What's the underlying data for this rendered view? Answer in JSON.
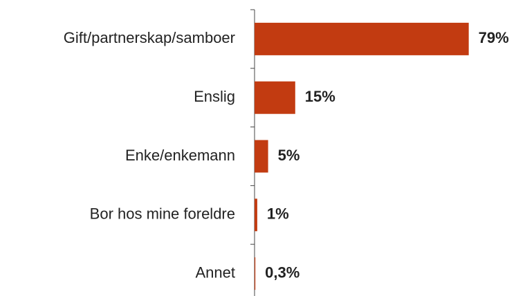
{
  "chart_data": {
    "type": "bar",
    "orientation": "horizontal",
    "categories": [
      "Gift/partnerskap/samboer",
      "Enslig",
      "Enke/enkemann",
      "Bor hos mine foreldre",
      "Annet"
    ],
    "values": [
      79,
      15,
      5,
      1,
      0.3
    ],
    "value_labels": [
      "79%",
      "15%",
      "5%",
      "1%",
      "0,3%"
    ],
    "color": "#c23b11"
  }
}
